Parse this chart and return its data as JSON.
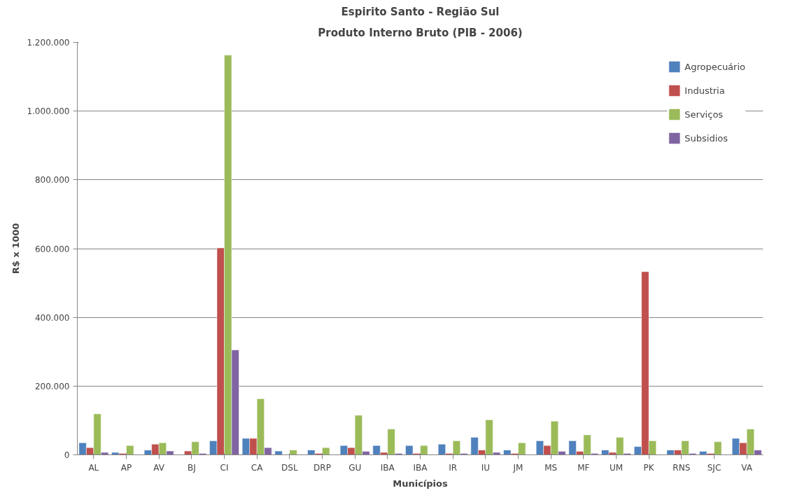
{
  "chart_data": {
    "type": "bar",
    "title": "Espirito Santo - Região Sul",
    "subtitle": "Produto Interno Bruto (PIB - 2006)",
    "xlabel": "Municípios",
    "ylabel": "R$ x 1000",
    "categories": [
      "AL",
      "AP",
      "AV",
      "BJ",
      "CI",
      "CA",
      "DSL",
      "DRP",
      "GU",
      "IBA",
      "IBA",
      "IR",
      "IU",
      "JM",
      "MS",
      "MF",
      "UM",
      "PK",
      "RNS",
      "SJC",
      "VA"
    ],
    "series": [
      {
        "name": "Agropecuário",
        "color": "#4f81bd",
        "values": [
          35000,
          7000,
          14000,
          null,
          41000,
          48000,
          11000,
          14000,
          27000,
          27000,
          27000,
          31000,
          51000,
          14000,
          41000,
          41000,
          14000,
          24000,
          14000,
          10000,
          48000
        ]
      },
      {
        "name": "Industria",
        "color": "#c0504d",
        "values": [
          21000,
          4000,
          31000,
          11000,
          602000,
          48000,
          null,
          4000,
          21000,
          7000,
          4000,
          4000,
          14000,
          4000,
          27000,
          10000,
          7000,
          533000,
          14000,
          4000,
          35000
        ]
      },
      {
        "name": "Serviços",
        "color": "#9bbb59",
        "values": [
          119000,
          27000,
          35000,
          38000,
          1163000,
          163000,
          14000,
          21000,
          115000,
          75000,
          27000,
          41000,
          102000,
          35000,
          98000,
          58000,
          51000,
          41000,
          41000,
          38000,
          75000
        ]
      },
      {
        "name": "Subsidios",
        "color": "#8064a2",
        "values": [
          7000,
          null,
          11000,
          4000,
          305000,
          21000,
          null,
          null,
          10000,
          4000,
          null,
          4000,
          7000,
          null,
          10000,
          4000,
          4000,
          null,
          4000,
          null,
          14000
        ]
      }
    ],
    "ylim": [
      0,
      1200000
    ],
    "yticks": [
      0,
      {
        "value": 200000,
        "label": "200.000"
      },
      {
        "value": 400000,
        "label": "400.000"
      },
      {
        "value": 600000,
        "label": "600.000"
      },
      {
        "value": 800000,
        "label": "800.000"
      },
      {
        "value": 1000000,
        "label": "1.000.000"
      },
      {
        "value": 1200000,
        "label": "1.200.000"
      }
    ],
    "grid": "y",
    "legend": "top right"
  }
}
